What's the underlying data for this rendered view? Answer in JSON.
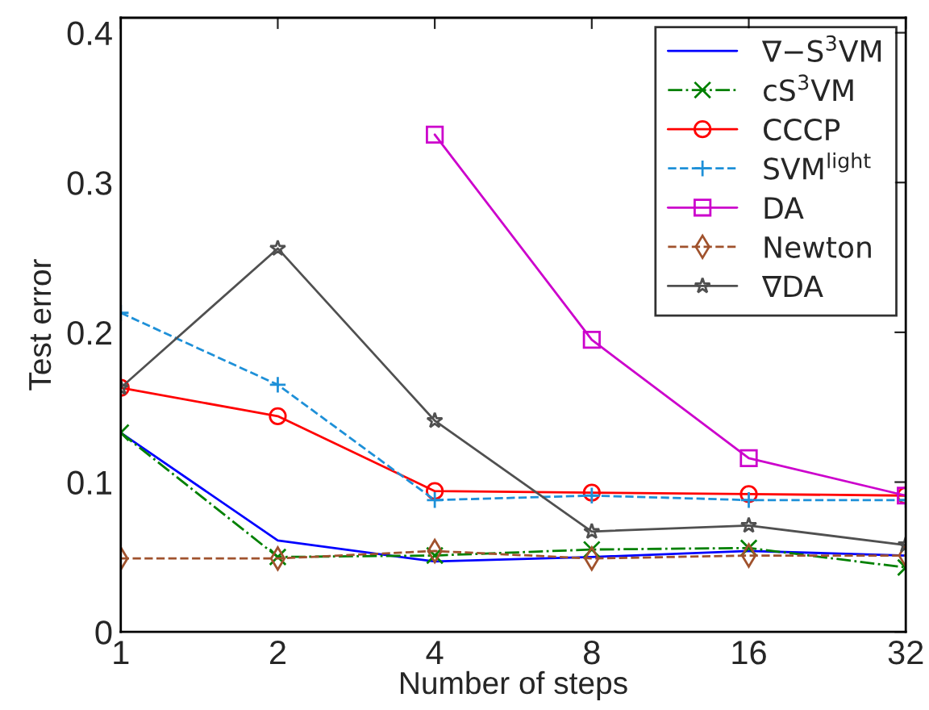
{
  "chart_data": {
    "type": "line",
    "xlabel": "Number of steps",
    "ylabel": "Test error",
    "categories": [
      "1",
      "2",
      "4",
      "8",
      "16",
      "32"
    ],
    "ylim": [
      0,
      0.41
    ],
    "yticks": [
      0,
      0.1,
      0.2,
      0.3,
      0.4
    ],
    "grid": false,
    "legend": "top right",
    "series": [
      {
        "name": "∇−S$^{3}$VM",
        "color": "#0000ff",
        "marker": "none",
        "line_style": "solid",
        "values": [
          0.133,
          0.061,
          0.047,
          0.05,
          0.054,
          0.051
        ]
      },
      {
        "name": "cS$^{3}$VM",
        "color": "#008000",
        "marker": "cross",
        "line_style": "dashdot",
        "values": [
          0.133,
          0.05,
          0.051,
          0.055,
          0.056,
          0.043
        ]
      },
      {
        "name": "CCCP",
        "color": "#ff0000",
        "marker": "circle",
        "line_style": "solid",
        "values": [
          0.163,
          0.144,
          0.094,
          0.093,
          0.092,
          0.091
        ]
      },
      {
        "name": "SVM$^{light}$",
        "color": "#1e90d8",
        "marker": "plus",
        "line_style": "dashed",
        "values": [
          0.213,
          0.165,
          0.088,
          0.091,
          0.088,
          0.088
        ]
      },
      {
        "name": "DA",
        "color": "#cc00cc",
        "marker": "square",
        "line_style": "solid",
        "values": [
          null,
          null,
          0.332,
          0.195,
          0.116,
          0.091
        ]
      },
      {
        "name": "Newton",
        "color": "#a0522d",
        "marker": "diamond",
        "line_style": "dashed",
        "values": [
          0.049,
          0.049,
          0.054,
          0.049,
          0.051,
          0.051
        ]
      },
      {
        "name": "∇DA",
        "color": "#505050",
        "marker": "star",
        "line_style": "solid",
        "values": [
          0.163,
          0.256,
          0.141,
          0.067,
          0.071,
          0.058
        ]
      }
    ]
  }
}
